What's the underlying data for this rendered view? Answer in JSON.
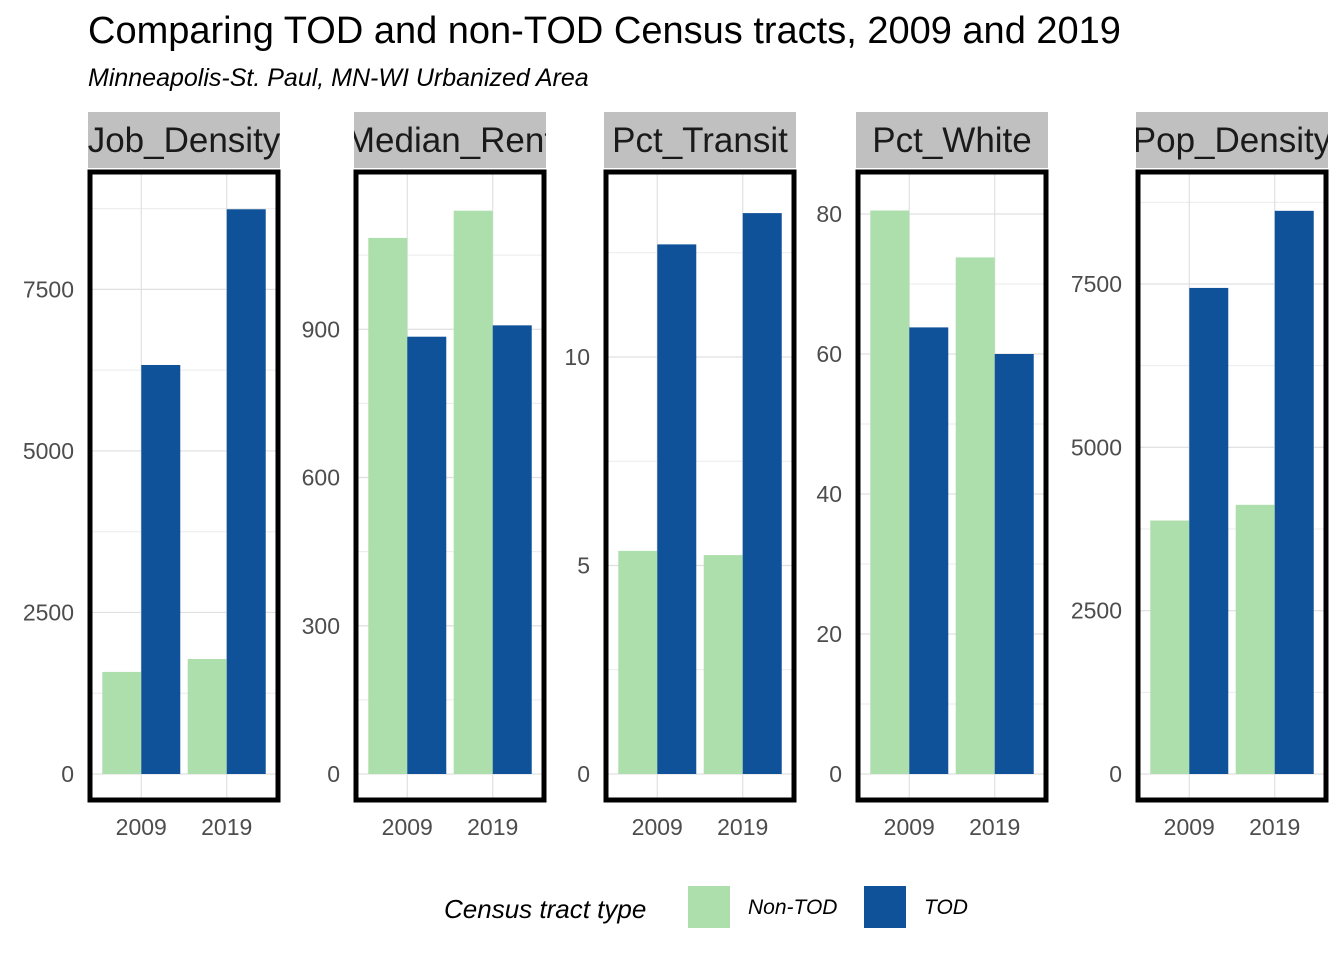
{
  "title": "Comparing TOD and non-TOD Census tracts, 2009 and 2019",
  "subtitle": "Minneapolis-St. Paul, MN-WI Urbanized Area",
  "legend": {
    "title": "Census tract type",
    "items": [
      {
        "label": "Non-TOD",
        "color": "#addfad"
      },
      {
        "label": "TOD",
        "color": "#0f529a"
      }
    ]
  },
  "chart_data": {
    "type": "bar",
    "categories": [
      "2009",
      "2019"
    ],
    "series_names": [
      "Non-TOD",
      "TOD"
    ],
    "grid": true,
    "legend_position": "bottom",
    "facets": [
      {
        "name": "Job_Density",
        "ylim": [
          0,
          9100
        ],
        "yticks": [
          0,
          2500,
          5000,
          7500
        ],
        "ytick_labels": [
          "0",
          "2500",
          "5000",
          "7500"
        ],
        "series": [
          {
            "name": "Non-TOD",
            "values": [
              1580,
              1780
            ]
          },
          {
            "name": "TOD",
            "values": [
              6330,
              8740
            ]
          }
        ]
      },
      {
        "name": "Median_Rent",
        "ylim": [
          0,
          1190
        ],
        "yticks": [
          0,
          300,
          600,
          900
        ],
        "ytick_labels": [
          "0",
          "300",
          "600",
          "900"
        ],
        "series": [
          {
            "name": "Non-TOD",
            "values": [
              1085,
              1140
            ]
          },
          {
            "name": "TOD",
            "values": [
              885,
              908
            ]
          }
        ]
      },
      {
        "name": "Pct_Transit",
        "ylim": [
          0,
          14.1
        ],
        "yticks": [
          0,
          5,
          10
        ],
        "ytick_labels": [
          "0",
          "5",
          "10"
        ],
        "series": [
          {
            "name": "Non-TOD",
            "values": [
              5.35,
              5.25
            ]
          },
          {
            "name": "TOD",
            "values": [
              12.7,
              13.45
            ]
          }
        ]
      },
      {
        "name": "Pct_White",
        "ylim": [
          0,
          84
        ],
        "yticks": [
          0,
          20,
          40,
          60,
          80
        ],
        "ytick_labels": [
          "0",
          "20",
          "40",
          "60",
          "80"
        ],
        "series": [
          {
            "name": "Non-TOD",
            "values": [
              80.5,
              73.8
            ]
          },
          {
            "name": "TOD",
            "values": [
              63.8,
              60.0
            ]
          }
        ]
      },
      {
        "name": "Pop_Density",
        "ylim": [
          0,
          9000
        ],
        "yticks": [
          0,
          2500,
          5000,
          7500
        ],
        "ytick_labels": [
          "0",
          "2500",
          "5000",
          "7500"
        ],
        "series": [
          {
            "name": "Non-TOD",
            "values": [
              3880,
              4120
            ]
          },
          {
            "name": "TOD",
            "values": [
              7440,
              8620
            ]
          }
        ]
      }
    ]
  }
}
